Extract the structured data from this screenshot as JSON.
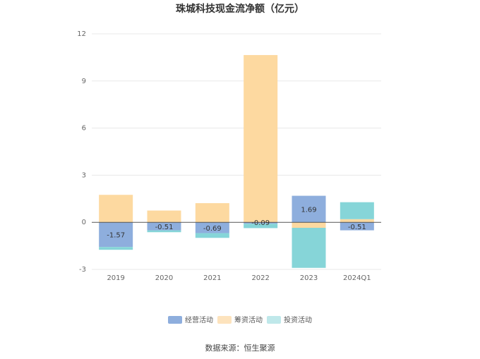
{
  "chart_data": {
    "type": "bar",
    "stacked": true,
    "title": "珠城科技现金流净额（亿元）",
    "categories": [
      "2019",
      "2020",
      "2021",
      "2022",
      "2023",
      "2024Q1"
    ],
    "ylim": [
      -3,
      12
    ],
    "yticks": [
      -3,
      0,
      3,
      6,
      9,
      12
    ],
    "grid": true,
    "legend_position": "bottom",
    "series": [
      {
        "name": "经营活动",
        "color": "#8eaedd",
        "values": [
          -1.57,
          -0.51,
          -0.69,
          -0.09,
          1.69,
          -0.51
        ],
        "labels": [
          "-1.57",
          "-0.51",
          "-0.69",
          "-0.09",
          "1.69",
          "-0.51"
        ]
      },
      {
        "name": "筹资活动",
        "color": "#fdd9a0",
        "values": [
          1.75,
          0.75,
          1.22,
          10.65,
          -0.35,
          0.2
        ]
      },
      {
        "name": "投资活动",
        "color": "#86d5d8",
        "values": [
          -0.18,
          -0.12,
          -0.3,
          -0.28,
          -2.55,
          1.08
        ]
      }
    ],
    "legend_colors": [
      "#8eaedd",
      "#fde3bd",
      "#bfe8ea"
    ],
    "source": "数据来源：恒生聚源"
  }
}
